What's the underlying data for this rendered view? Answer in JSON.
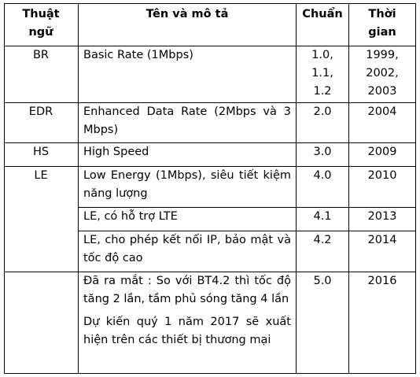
{
  "table": {
    "headers": {
      "term": "Thuật ngữ",
      "desc": "Tên và mô tả",
      "std": "Chuẩn",
      "time": "Thời gian"
    },
    "rows": [
      {
        "term": "BR",
        "desc": [
          "Basic Rate (1Mbps)"
        ],
        "std": "1.0, 1.1, 1.2",
        "time": "1999, 2002, 2003"
      },
      {
        "term": "EDR",
        "desc": [
          "Enhanced Data Rate (2Mbps và 3 Mbps)"
        ],
        "std": "2.0",
        "time": "2004"
      },
      {
        "term": "HS",
        "desc": [
          "High Speed"
        ],
        "std": "3.0",
        "time": "2009"
      },
      {
        "term": "LE",
        "desc": [
          "Low Energy (1Mbps), siêu tiết kiệm năng lượng"
        ],
        "std": "4.0",
        "time": "2010"
      },
      {
        "term": "",
        "desc": [
          "LE, có hỗ trợ LTE"
        ],
        "std": "4.1",
        "time": "2013"
      },
      {
        "term": "",
        "desc": [
          "LE, cho phép kết nối IP, bảo mật và tốc độ cao"
        ],
        "std": "4.2",
        "time": "2014"
      },
      {
        "term": "",
        "desc": [
          "Đã ra mắt : So với BT4.2 thì tốc độ tăng 2 lần, tầm phủ sóng tăng 4 lần",
          "Dự kiến quý 1 năm 2017 sẽ xuất hiện trên các thiết bị thương mại"
        ],
        "std": "5.0",
        "time": "2016"
      }
    ]
  }
}
